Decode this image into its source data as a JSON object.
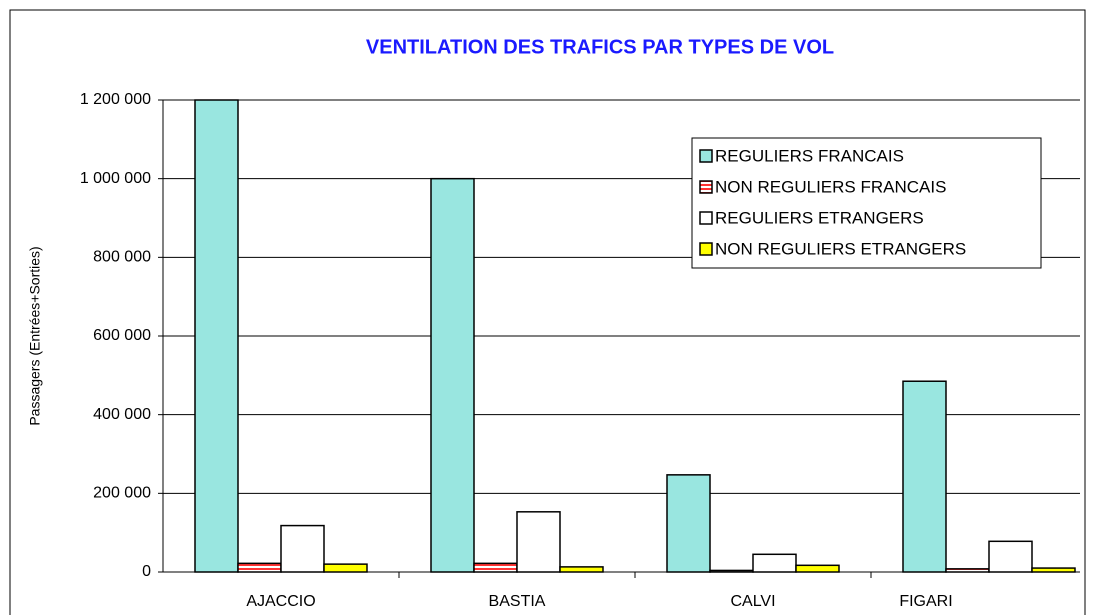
{
  "chart_data": {
    "type": "bar",
    "title": "VENTILATION DES TRAFICS PAR TYPES DE VOL",
    "ylabel": "Passagers  (Entrées+Sorties)",
    "categories": [
      "AJACCIO",
      "BASTIA",
      "CALVI",
      "FIGARI"
    ],
    "series": [
      {
        "name": "REGULIERS FRANCAIS",
        "color": "#99e6e0",
        "values": [
          1200000,
          1000000,
          247000,
          485000
        ]
      },
      {
        "name": "NON REGULIERS FRANCAIS",
        "color": "#ff3333",
        "values": [
          22000,
          22000,
          4000,
          8000
        ]
      },
      {
        "name": "REGULIERS ETRANGERS",
        "color": "#ffffff",
        "values": [
          118000,
          153000,
          45000,
          78000
        ]
      },
      {
        "name": "NON REGULIERS ETRANGERS",
        "color": "#ffff00",
        "values": [
          20000,
          13000,
          17000,
          10000
        ]
      }
    ],
    "ylim": [
      0,
      1200000
    ],
    "yticks": [
      0,
      {
        "value": 200000,
        "label": "200 000"
      },
      {
        "value": 400000,
        "label": "400 000"
      },
      {
        "value": 600000,
        "label": "600 000"
      },
      {
        "value": 800000,
        "label": "800 000"
      },
      {
        "value": 1000000,
        "label": "1 000 000"
      },
      {
        "value": 1200000,
        "label": "1 200 000"
      }
    ],
    "grid": true,
    "legend": "upper right"
  }
}
